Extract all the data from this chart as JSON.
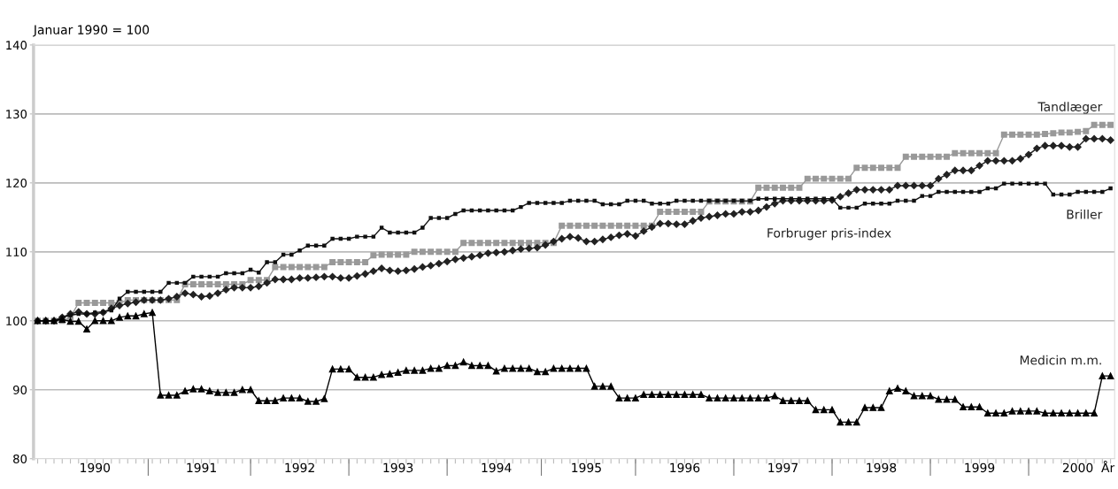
{
  "chart_data": {
    "type": "line",
    "ylabel": "Januar 1990 = 100",
    "xlabel": "År",
    "categories": [
      null,
      null,
      null,
      null,
      null,
      null,
      null,
      "1990",
      null,
      null,
      null,
      null,
      null,
      null,
      null,
      null,
      null,
      null,
      null,
      null,
      "1991",
      null,
      null,
      null,
      null,
      null,
      null,
      null,
      null,
      null,
      null,
      null,
      "1992",
      null,
      null,
      null,
      null,
      null,
      null,
      null,
      null,
      null,
      null,
      null,
      "1993",
      null,
      null,
      null,
      null,
      null,
      null,
      null,
      null,
      null,
      null,
      null,
      "1994",
      null,
      null,
      null,
      null,
      null,
      null,
      null,
      null,
      null,
      null,
      "1995",
      null,
      null,
      null,
      null,
      null,
      null,
      null,
      null,
      null,
      null,
      null,
      "1996",
      null,
      null,
      null,
      null,
      null,
      null,
      null,
      null,
      null,
      null,
      null,
      "1997",
      null,
      null,
      null,
      null,
      null,
      null,
      null,
      null,
      null,
      null,
      null,
      "1998",
      null,
      null,
      null,
      null,
      null,
      null,
      null,
      null,
      null,
      null,
      null,
      "1999",
      null,
      null,
      null,
      null,
      null,
      null,
      null,
      null,
      null,
      null,
      null,
      "2000",
      null,
      null,
      null,
      null
    ],
    "series": [
      {
        "name": "Tandlæger",
        "color": "#999999",
        "marker": "square",
        "values": [
          100,
          100,
          100,
          100,
          100.5,
          102.6,
          102.6,
          102.6,
          102.6,
          102.6,
          102.6,
          103,
          103,
          103,
          103,
          103,
          103,
          103,
          105.3,
          105.3,
          105.3,
          105.3,
          105.3,
          105.3,
          105.3,
          105.3,
          105.9,
          105.9,
          105.9,
          107.8,
          107.8,
          107.8,
          107.8,
          107.8,
          107.8,
          107.8,
          108.5,
          108.5,
          108.5,
          108.5,
          108.5,
          109.5,
          109.6,
          109.6,
          109.6,
          109.6,
          110,
          110,
          110,
          110,
          110,
          110,
          111.3,
          111.3,
          111.3,
          111.3,
          111.3,
          111.3,
          111.3,
          111.3,
          111.3,
          111.3,
          111.3,
          111.3,
          113.8,
          113.8,
          113.8,
          113.8,
          113.8,
          113.8,
          113.8,
          113.8,
          113.8,
          113.8,
          113.8,
          113.8,
          115.8,
          115.8,
          115.8,
          115.8,
          115.8,
          115.8,
          117.3,
          117.3,
          117.3,
          117.3,
          117.3,
          117.3,
          119.3,
          119.3,
          119.3,
          119.3,
          119.3,
          119.3,
          120.6,
          120.6,
          120.6,
          120.6,
          120.6,
          120.6,
          122.2,
          122.2,
          122.2,
          122.2,
          122.2,
          122.2,
          123.8,
          123.8,
          123.8,
          123.8,
          123.8,
          123.8,
          124.3,
          124.3,
          124.3,
          124.3,
          124.3,
          124.3,
          127,
          127,
          127,
          127,
          127,
          127.1,
          127.2,
          127.3,
          127.3,
          127.4,
          127.5,
          128.4,
          128.4,
          128.4
        ]
      },
      {
        "name": "Forbruger pris-index",
        "color": "#222222",
        "marker": "diamond",
        "values": [
          100,
          100,
          100,
          100.5,
          101,
          101.3,
          101,
          101,
          101.2,
          101.8,
          102.2,
          102.5,
          102.7,
          103,
          103,
          103,
          103.2,
          103.5,
          104,
          103.8,
          103.5,
          103.6,
          104,
          104.5,
          104.8,
          104.8,
          104.8,
          105,
          105.5,
          106,
          106,
          106,
          106.2,
          106.2,
          106.3,
          106.4,
          106.4,
          106.2,
          106.2,
          106.5,
          106.8,
          107.2,
          107.6,
          107.3,
          107.2,
          107.3,
          107.5,
          107.8,
          108,
          108.3,
          108.6,
          108.9,
          109.1,
          109.3,
          109.5,
          109.8,
          109.9,
          110,
          110.2,
          110.4,
          110.5,
          110.6,
          111,
          111.5,
          111.9,
          112.2,
          112,
          111.5,
          111.5,
          111.8,
          112.1,
          112.4,
          112.6,
          112.3,
          113,
          113.6,
          114.1,
          114.1,
          114,
          114,
          114.5,
          114.9,
          115.1,
          115.3,
          115.5,
          115.5,
          115.8,
          115.8,
          116,
          116.5,
          117,
          117.4,
          117.4,
          117.4,
          117.4,
          117.4,
          117.4,
          117.5,
          118,
          118.5,
          119,
          119,
          119,
          119,
          119,
          119.6,
          119.6,
          119.6,
          119.6,
          119.6,
          120.6,
          121.2,
          121.8,
          121.8,
          121.8,
          122.5,
          123.2,
          123.2,
          123.2,
          123.2,
          123.5,
          124.1,
          125,
          125.4,
          125.4,
          125.4,
          125.2,
          125.2,
          126.4,
          126.4,
          126.4,
          126.2
        ]
      },
      {
        "name": "Briller",
        "color": "#111111",
        "marker": "square",
        "values": [
          100,
          100,
          100,
          100.5,
          100.8,
          101,
          101,
          101.2,
          101.3,
          101.5,
          103.2,
          104.2,
          104.2,
          104.2,
          104.2,
          104.2,
          105.5,
          105.5,
          105.5,
          106.4,
          106.4,
          106.4,
          106.4,
          106.9,
          106.9,
          106.9,
          107.4,
          107,
          108.5,
          108.5,
          109.6,
          109.6,
          110.2,
          110.9,
          110.9,
          110.9,
          111.9,
          111.9,
          111.9,
          112.2,
          112.2,
          112.2,
          113.5,
          112.8,
          112.8,
          112.8,
          112.8,
          113.5,
          114.9,
          114.9,
          114.9,
          115.5,
          116,
          116,
          116,
          116,
          116,
          116,
          116,
          116.5,
          117.1,
          117.1,
          117.1,
          117.1,
          117.1,
          117.4,
          117.4,
          117.4,
          117.4,
          116.9,
          116.9,
          116.9,
          117.4,
          117.4,
          117.4,
          117,
          117,
          117,
          117.4,
          117.4,
          117.4,
          117.4,
          117.4,
          117.4,
          117.4,
          117.4,
          117.4,
          117.4,
          117.7,
          117.7,
          117.7,
          117.7,
          117.7,
          117.7,
          117.7,
          117.7,
          117.7,
          117.7,
          116.4,
          116.4,
          116.4,
          117,
          117,
          117,
          117,
          117.4,
          117.4,
          117.4,
          118.1,
          118.1,
          118.7,
          118.7,
          118.7,
          118.7,
          118.7,
          118.7,
          119.2,
          119.2,
          119.9,
          119.9,
          119.9,
          119.9,
          119.9,
          119.9,
          118.3,
          118.3,
          118.3,
          118.7,
          118.7,
          118.7,
          118.7,
          119.2
        ]
      },
      {
        "name": "Medicin m.m.",
        "color": "#000000",
        "marker": "triangle",
        "values": [
          100,
          100,
          100,
          100.2,
          99.9,
          99.9,
          98.8,
          100,
          100,
          100,
          100.5,
          100.7,
          100.7,
          101,
          101.2,
          89.2,
          89.2,
          89.2,
          89.8,
          90.1,
          90.1,
          89.8,
          89.6,
          89.6,
          89.6,
          90,
          90,
          88.4,
          88.4,
          88.4,
          88.8,
          88.8,
          88.8,
          88.3,
          88.3,
          88.7,
          93,
          93,
          93,
          91.8,
          91.8,
          91.8,
          92.2,
          92.3,
          92.5,
          92.8,
          92.8,
          92.8,
          93.1,
          93.1,
          93.5,
          93.5,
          94,
          93.5,
          93.5,
          93.5,
          92.7,
          93.1,
          93.1,
          93.1,
          93.1,
          92.6,
          92.6,
          93.1,
          93.1,
          93.1,
          93.1,
          93.1,
          90.5,
          90.5,
          90.5,
          88.8,
          88.8,
          88.8,
          89.3,
          89.3,
          89.3,
          89.3,
          89.3,
          89.3,
          89.3,
          89.3,
          88.8,
          88.8,
          88.8,
          88.8,
          88.8,
          88.8,
          88.8,
          88.8,
          89.1,
          88.4,
          88.4,
          88.4,
          88.4,
          87.1,
          87.1,
          87.1,
          85.3,
          85.3,
          85.3,
          87.4,
          87.4,
          87.4,
          89.8,
          90.2,
          89.8,
          89.1,
          89.1,
          89.1,
          88.6,
          88.6,
          88.6,
          87.5,
          87.5,
          87.5,
          86.6,
          86.6,
          86.6,
          86.9,
          86.9,
          86.9,
          86.9,
          86.6,
          86.6,
          86.6,
          86.6,
          86.6,
          86.6,
          86.6,
          92,
          92
        ]
      }
    ],
    "ylim": [
      80,
      140
    ],
    "yticks": [
      80,
      90,
      100,
      110,
      120,
      130,
      140
    ],
    "grid": "y",
    "legend": false
  }
}
